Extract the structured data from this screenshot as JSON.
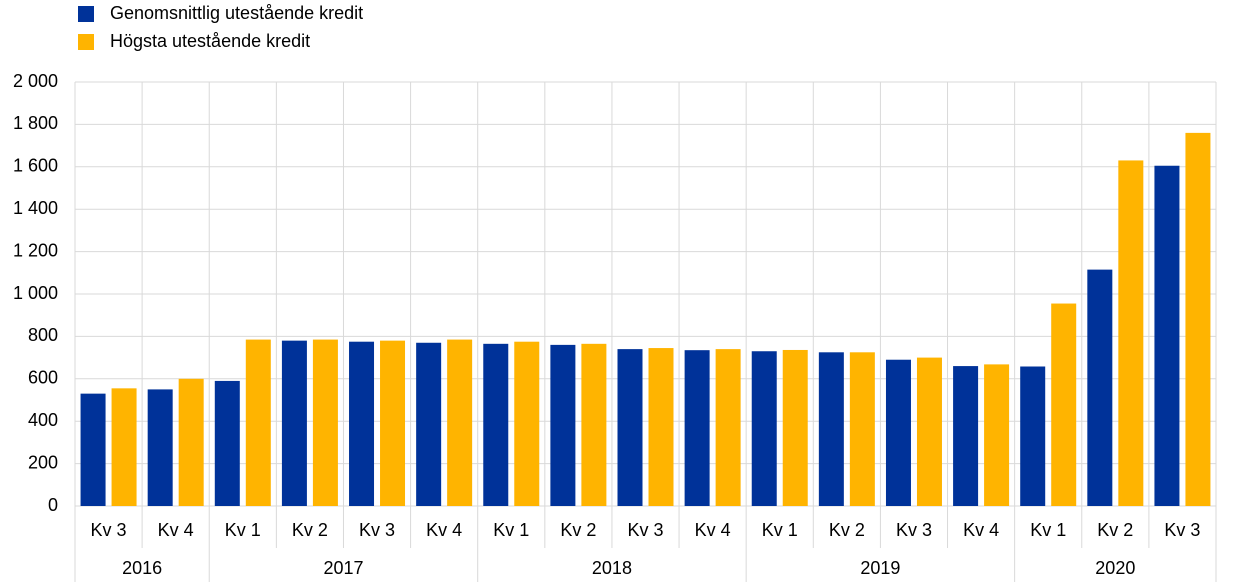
{
  "chart_data": {
    "type": "bar",
    "groups": [
      {
        "label": "2016",
        "categories": [
          "Kv 3",
          "Kv 4"
        ]
      },
      {
        "label": "2017",
        "categories": [
          "Kv 1",
          "Kv 2",
          "Kv 3",
          "Kv 4"
        ]
      },
      {
        "label": "2018",
        "categories": [
          "Kv 1",
          "Kv 2",
          "Kv 3",
          "Kv 4"
        ]
      },
      {
        "label": "2019",
        "categories": [
          "Kv 1",
          "Kv 2",
          "Kv 3",
          "Kv 4"
        ]
      },
      {
        "label": "2020",
        "categories": [
          "Kv 1",
          "Kv 2",
          "Kv 3"
        ]
      }
    ],
    "series": [
      {
        "name": "Genomsnittlig utestående kredit",
        "color": "#003299",
        "values": [
          530,
          550,
          590,
          780,
          775,
          770,
          765,
          760,
          740,
          735,
          730,
          725,
          690,
          660,
          658,
          1115,
          1605
        ]
      },
      {
        "name": "Högsta utestående kredit",
        "color": "#ffb400",
        "values": [
          555,
          600,
          785,
          785,
          780,
          785,
          775,
          765,
          745,
          740,
          736,
          725,
          700,
          668,
          955,
          1630,
          1760
        ]
      }
    ],
    "ylim": [
      0,
      2000
    ],
    "yticks": [
      0,
      200,
      400,
      600,
      800,
      {
        "value": 1000,
        "label": "1 000"
      },
      {
        "value": 1200,
        "label": "1 200"
      },
      {
        "value": 1400,
        "label": "1 400"
      },
      {
        "value": 1600,
        "label": "1 600"
      },
      {
        "value": 1800,
        "label": "1 800"
      },
      {
        "value": 2000,
        "label": "2 000"
      }
    ],
    "grid": true,
    "legend": "top-left"
  }
}
